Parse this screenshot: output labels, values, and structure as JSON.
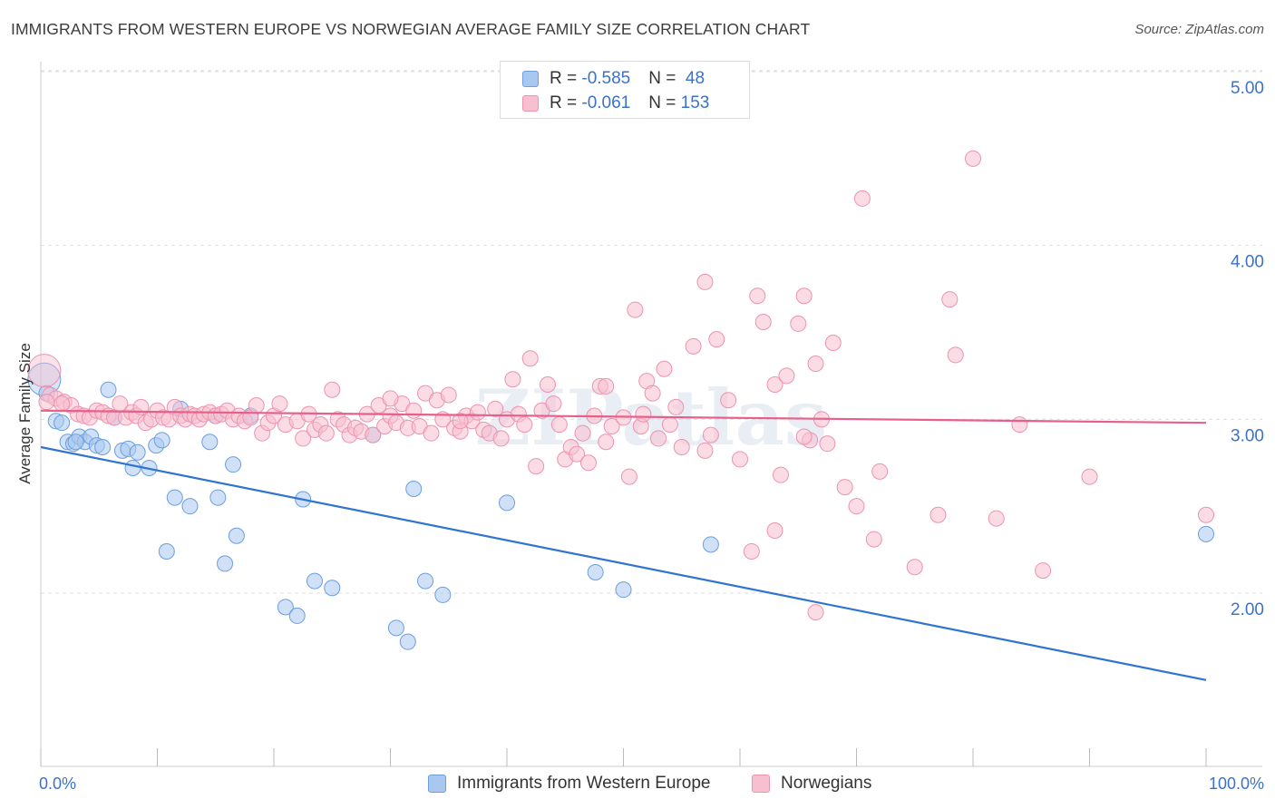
{
  "title": "IMMIGRANTS FROM WESTERN EUROPE VS NORWEGIAN AVERAGE FAMILY SIZE CORRELATION CHART",
  "source": "Source: ZipAtlas.com",
  "watermark": "ZIPatlas",
  "legend_top": [
    {
      "r_label": "R = ",
      "r_value": "-0.585",
      "n_label": "N = ",
      "n_value": " 48"
    },
    {
      "r_label": "R = ",
      "r_value": "-0.061",
      "n_label": "N = ",
      "n_value": "153"
    }
  ],
  "colors": {
    "blue_fill": "#a9c8f0",
    "blue_stroke": "#6a9ee0",
    "blue_line": "#2f74d0",
    "pink_fill": "#f7bfd0",
    "pink_stroke": "#ec93b0",
    "pink_line": "#e8608a",
    "tick_label": "#3a72c8"
  },
  "chart_data": {
    "type": "scatter",
    "xlabel": "",
    "ylabel": "Average Family Size",
    "xlim": [
      0,
      100
    ],
    "ylim": [
      1.05,
      5.1
    ],
    "x_tick_labels": [
      "0.0%",
      "100.0%"
    ],
    "y_ticks": [
      2.0,
      3.0,
      4.0,
      5.0
    ],
    "y_tick_labels": [
      "2.00",
      "3.00",
      "4.00",
      "5.00"
    ],
    "grid": true,
    "series": [
      {
        "name": "Immigrants from Western Europe",
        "color": "blue",
        "r": -0.585,
        "n": 48,
        "trend": {
          "x": [
            0,
            100
          ],
          "y": [
            2.84,
            1.5
          ]
        },
        "points": [
          [
            0.3,
            3.23
          ],
          [
            0.5,
            3.15
          ],
          [
            1.3,
            2.99
          ],
          [
            1.8,
            2.98
          ],
          [
            2.3,
            2.87
          ],
          [
            2.8,
            2.86
          ],
          [
            3.3,
            2.9
          ],
          [
            3.8,
            2.87
          ],
          [
            4.3,
            2.9
          ],
          [
            4.8,
            2.85
          ],
          [
            5.3,
            2.84
          ],
          [
            5.8,
            3.17
          ],
          [
            6.3,
            3.01
          ],
          [
            7.0,
            2.82
          ],
          [
            7.5,
            2.83
          ],
          [
            7.9,
            2.72
          ],
          [
            8.3,
            2.81
          ],
          [
            9.3,
            2.72
          ],
          [
            9.9,
            2.85
          ],
          [
            10.4,
            2.88
          ],
          [
            10.8,
            2.24
          ],
          [
            11.5,
            2.55
          ],
          [
            12.0,
            3.06
          ],
          [
            12.8,
            2.5
          ],
          [
            14.5,
            2.87
          ],
          [
            15.0,
            3.02
          ],
          [
            15.2,
            2.55
          ],
          [
            15.8,
            2.17
          ],
          [
            16.5,
            2.74
          ],
          [
            16.8,
            2.33
          ],
          [
            18.0,
            3.02
          ],
          [
            21.0,
            1.92
          ],
          [
            22.0,
            1.87
          ],
          [
            22.5,
            2.54
          ],
          [
            23.5,
            2.07
          ],
          [
            25.0,
            2.03
          ],
          [
            28.5,
            2.91
          ],
          [
            30.5,
            1.8
          ],
          [
            31.5,
            1.72
          ],
          [
            32.0,
            2.6
          ],
          [
            33.0,
            2.07
          ],
          [
            34.5,
            1.99
          ],
          [
            40.0,
            2.52
          ],
          [
            47.6,
            2.12
          ],
          [
            50.0,
            2.02
          ],
          [
            57.5,
            2.28
          ],
          [
            100.0,
            2.34
          ],
          [
            3.0,
            2.87
          ]
        ]
      },
      {
        "name": "Norwegians",
        "color": "pink",
        "r": -0.061,
        "n": 153,
        "trend": {
          "x": [
            0,
            100
          ],
          "y": [
            3.05,
            2.98
          ]
        },
        "points": [
          [
            0.3,
            3.28
          ],
          [
            0.8,
            3.14
          ],
          [
            1.3,
            3.12
          ],
          [
            2.0,
            3.1
          ],
          [
            2.6,
            3.08
          ],
          [
            3.2,
            3.03
          ],
          [
            3.7,
            3.02
          ],
          [
            4.2,
            3.01
          ],
          [
            4.8,
            3.05
          ],
          [
            5.3,
            3.04
          ],
          [
            5.8,
            3.02
          ],
          [
            6.3,
            3.01
          ],
          [
            6.8,
            3.09
          ],
          [
            7.3,
            3.01
          ],
          [
            7.8,
            3.04
          ],
          [
            8.2,
            3.02
          ],
          [
            8.6,
            3.07
          ],
          [
            9.0,
            2.98
          ],
          [
            9.5,
            3.0
          ],
          [
            10.0,
            3.05
          ],
          [
            10.5,
            3.01
          ],
          [
            11.0,
            3.0
          ],
          [
            11.5,
            3.07
          ],
          [
            12.0,
            3.02
          ],
          [
            12.4,
            3.0
          ],
          [
            12.8,
            3.03
          ],
          [
            13.2,
            3.02
          ],
          [
            13.6,
            3.0
          ],
          [
            14.0,
            3.03
          ],
          [
            14.5,
            3.04
          ],
          [
            15.0,
            3.02
          ],
          [
            15.5,
            3.03
          ],
          [
            16.0,
            3.05
          ],
          [
            16.5,
            3.0
          ],
          [
            17.0,
            3.02
          ],
          [
            17.5,
            2.99
          ],
          [
            18.0,
            3.01
          ],
          [
            18.5,
            3.08
          ],
          [
            19.0,
            2.92
          ],
          [
            19.5,
            2.98
          ],
          [
            20.0,
            3.02
          ],
          [
            20.5,
            3.09
          ],
          [
            21.0,
            2.97
          ],
          [
            22.0,
            2.99
          ],
          [
            22.5,
            2.89
          ],
          [
            23.0,
            3.03
          ],
          [
            23.5,
            2.94
          ],
          [
            24.0,
            2.97
          ],
          [
            24.5,
            2.92
          ],
          [
            25.0,
            3.17
          ],
          [
            25.5,
            3.0
          ],
          [
            26.0,
            2.97
          ],
          [
            26.5,
            2.91
          ],
          [
            27.0,
            2.95
          ],
          [
            27.5,
            2.93
          ],
          [
            28.0,
            3.03
          ],
          [
            28.5,
            2.91
          ],
          [
            29.0,
            3.08
          ],
          [
            29.5,
            2.96
          ],
          [
            30.0,
            3.02
          ],
          [
            30.5,
            2.98
          ],
          [
            31.0,
            3.09
          ],
          [
            31.5,
            2.95
          ],
          [
            32.0,
            3.05
          ],
          [
            32.5,
            2.96
          ],
          [
            33.0,
            3.15
          ],
          [
            33.5,
            2.92
          ],
          [
            34.0,
            3.11
          ],
          [
            34.5,
            3.0
          ],
          [
            35.0,
            3.14
          ],
          [
            35.5,
            2.95
          ],
          [
            36.0,
            2.93
          ],
          [
            36.5,
            3.02
          ],
          [
            37.0,
            2.99
          ],
          [
            37.5,
            3.04
          ],
          [
            38.0,
            2.94
          ],
          [
            38.5,
            2.92
          ],
          [
            39.0,
            3.06
          ],
          [
            39.5,
            2.89
          ],
          [
            40.0,
            3.0
          ],
          [
            40.5,
            3.23
          ],
          [
            41.0,
            3.03
          ],
          [
            41.5,
            2.97
          ],
          [
            42.0,
            3.35
          ],
          [
            42.5,
            2.73
          ],
          [
            43.0,
            3.05
          ],
          [
            43.5,
            3.2
          ],
          [
            44.0,
            3.09
          ],
          [
            44.5,
            2.97
          ],
          [
            45.0,
            2.77
          ],
          [
            45.5,
            2.84
          ],
          [
            46.0,
            2.8
          ],
          [
            46.5,
            2.92
          ],
          [
            47.0,
            2.75
          ],
          [
            47.5,
            3.02
          ],
          [
            48.0,
            3.19
          ],
          [
            48.5,
            2.87
          ],
          [
            49.0,
            2.96
          ],
          [
            50.0,
            3.01
          ],
          [
            50.5,
            2.67
          ],
          [
            51.0,
            3.63
          ],
          [
            51.5,
            2.96
          ],
          [
            52.0,
            3.22
          ],
          [
            52.5,
            3.15
          ],
          [
            53.0,
            2.89
          ],
          [
            54.0,
            2.97
          ],
          [
            54.5,
            3.07
          ],
          [
            55.0,
            2.84
          ],
          [
            56.0,
            3.42
          ],
          [
            57.0,
            3.79
          ],
          [
            57.5,
            2.91
          ],
          [
            58.0,
            3.46
          ],
          [
            59.0,
            3.11
          ],
          [
            60.0,
            2.77
          ],
          [
            61.0,
            2.24
          ],
          [
            61.5,
            3.71
          ],
          [
            62.0,
            3.56
          ],
          [
            63.0,
            3.2
          ],
          [
            63.5,
            2.68
          ],
          [
            64.0,
            3.25
          ],
          [
            65.0,
            3.55
          ],
          [
            65.5,
            3.71
          ],
          [
            66.0,
            2.88
          ],
          [
            66.5,
            3.32
          ],
          [
            67.0,
            3.0
          ],
          [
            67.5,
            2.86
          ],
          [
            68.0,
            3.44
          ],
          [
            69.0,
            2.61
          ],
          [
            70.0,
            2.5
          ],
          [
            70.5,
            4.27
          ],
          [
            71.5,
            2.31
          ],
          [
            72.0,
            2.7
          ],
          [
            75.0,
            2.15
          ],
          [
            77.0,
            2.45
          ],
          [
            78.0,
            3.69
          ],
          [
            78.5,
            3.37
          ],
          [
            80.0,
            4.5
          ],
          [
            82.0,
            2.43
          ],
          [
            84.0,
            2.97
          ],
          [
            86.0,
            2.13
          ],
          [
            90.0,
            2.67
          ],
          [
            100.0,
            2.45
          ],
          [
            0.5,
            3.1
          ],
          [
            1.8,
            3.09
          ],
          [
            30.0,
            3.12
          ],
          [
            36.0,
            2.99
          ],
          [
            48.5,
            3.19
          ],
          [
            53.5,
            3.29
          ],
          [
            57.0,
            2.82
          ],
          [
            63.0,
            2.36
          ],
          [
            65.5,
            2.9
          ],
          [
            66.5,
            1.89
          ],
          [
            51.7,
            3.03
          ]
        ]
      }
    ]
  }
}
